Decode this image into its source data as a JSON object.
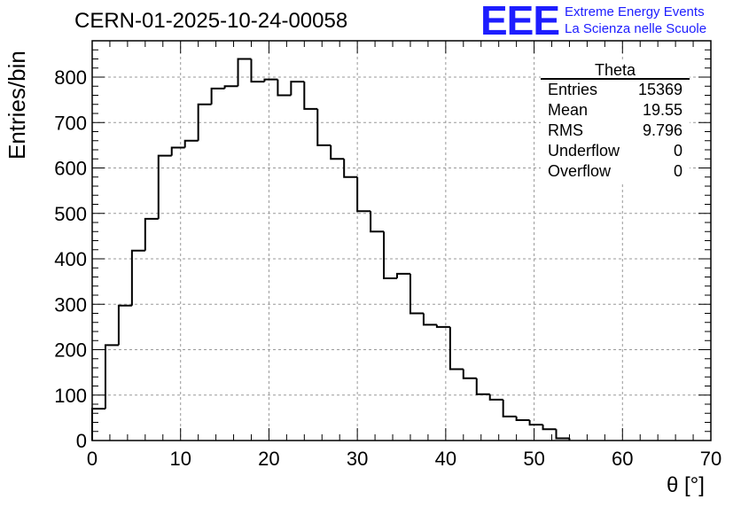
{
  "title": "CERN-01-2025-10-24-00058",
  "logo": {
    "mark": "EEE",
    "line1": "Extreme Energy Events",
    "line2": "La Scienza nelle Scuole",
    "color": "#1d1dff"
  },
  "stats": {
    "name": "Theta",
    "rows": [
      {
        "label": "Entries",
        "value": "15369"
      },
      {
        "label": "Mean",
        "value": "19.55"
      },
      {
        "label": "RMS",
        "value": "9.796"
      },
      {
        "label": "Underflow",
        "value": "0"
      },
      {
        "label": "Overflow",
        "value": "0"
      }
    ]
  },
  "chart_data": {
    "type": "histogram",
    "xlabel": "θ [°]",
    "ylabel": "Entries/bin",
    "xlim": [
      0,
      70
    ],
    "ylim": [
      0,
      880
    ],
    "grid": true,
    "bin_width": 1.5,
    "bin_start": 0,
    "values": [
      70,
      210,
      297,
      418,
      488,
      627,
      645,
      660,
      740,
      775,
      780,
      840,
      790,
      795,
      760,
      790,
      730,
      650,
      620,
      580,
      505,
      460,
      357,
      367,
      280,
      255,
      250,
      157,
      137,
      102,
      90,
      53,
      45,
      35,
      25,
      5
    ],
    "xticks": [
      0,
      10,
      20,
      30,
      40,
      50,
      60,
      70
    ],
    "yticks": [
      0,
      100,
      200,
      300,
      400,
      500,
      600,
      700,
      800
    ]
  }
}
